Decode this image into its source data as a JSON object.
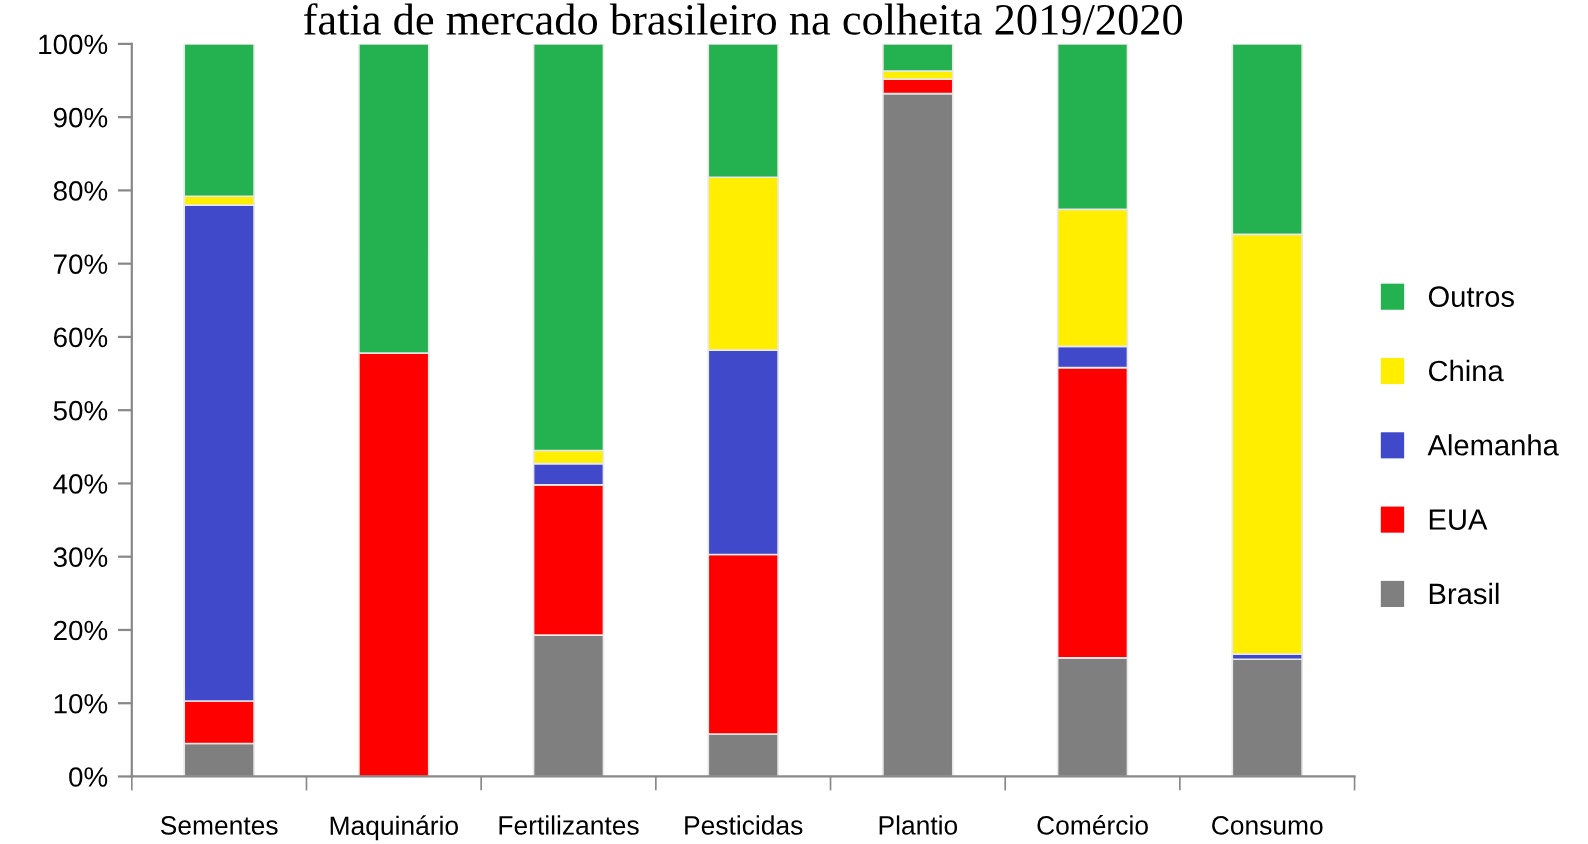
{
  "chart_data": {
    "type": "bar",
    "stacked": true,
    "title": "fatia de mercado brasileiro na colheita 2019/2020",
    "categories": [
      "Sementes",
      "Maquinário",
      "Fertilizantes",
      "Pesticidas",
      "Plantio",
      "Comércio",
      "Consumo"
    ],
    "series": [
      {
        "name": "Brasil",
        "color": "#7f7f7f",
        "values": [
          4.5,
          0,
          19.3,
          5.8,
          93.2,
          16.2,
          16.0
        ]
      },
      {
        "name": "EUA",
        "color": "#ff0000",
        "values": [
          5.8,
          57.8,
          20.5,
          24.5,
          2.0,
          39.6,
          0
        ]
      },
      {
        "name": "Alemanha",
        "color": "#4049c9",
        "values": [
          67.7,
          0,
          2.9,
          27.9,
          0,
          2.9,
          0.7
        ]
      },
      {
        "name": "China",
        "color": "#ffee00",
        "values": [
          1.2,
          0,
          1.8,
          23.6,
          1.1,
          18.7,
          57.3
        ]
      },
      {
        "name": "Outros",
        "color": "#24b14f",
        "values": [
          20.8,
          42.2,
          55.5,
          18.2,
          3.7,
          22.6,
          26.0
        ]
      }
    ],
    "ylim": [
      0,
      100
    ],
    "yticks": [
      {
        "value": 0,
        "label": "0%"
      },
      {
        "value": 10,
        "label": "10%"
      },
      {
        "value": 20,
        "label": "20%"
      },
      {
        "value": 30,
        "label": "30%"
      },
      {
        "value": 40,
        "label": "40%"
      },
      {
        "value": 50,
        "label": "50%"
      },
      {
        "value": 60,
        "label": "60%"
      },
      {
        "value": 70,
        "label": "70%"
      },
      {
        "value": 80,
        "label": "80%"
      },
      {
        "value": 90,
        "label": "90%"
      },
      {
        "value": 100,
        "label": "100%"
      }
    ],
    "grid": false,
    "legend": "right"
  }
}
